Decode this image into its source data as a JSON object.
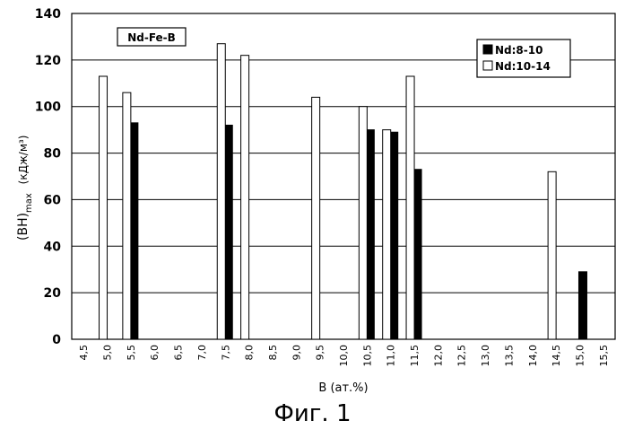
{
  "chart_data": {
    "type": "bar",
    "title": "Nd-Fe-B",
    "xlabel": "B (ат.%)",
    "ylabel_main": "(BH)",
    "ylabel_sub": "max",
    "ylabel_unit": "(кДж/м³)",
    "ylim": [
      0,
      140
    ],
    "yticks": [
      0,
      20,
      40,
      60,
      80,
      100,
      120,
      140
    ],
    "grid": true,
    "legend_position": "top-right",
    "categories": [
      "4,5",
      "5,0",
      "5,5",
      "6,0",
      "6,5",
      "7,0",
      "7,5",
      "8,0",
      "8,5",
      "9,0",
      "9,5",
      "10,0",
      "10,5",
      "11,0",
      "11,5",
      "12,0",
      "12,5",
      "13,0",
      "13,5",
      "14,0",
      "14,5",
      "15,0",
      "15,5"
    ],
    "series": [
      {
        "name": "Nd:8-10",
        "color": "#000000",
        "values": [
          null,
          null,
          93,
          null,
          null,
          null,
          92,
          null,
          null,
          null,
          null,
          null,
          90,
          89,
          73,
          null,
          null,
          null,
          null,
          null,
          null,
          29,
          null
        ]
      },
      {
        "name": "Nd:10-14",
        "color": "#ffffff",
        "values": [
          null,
          113,
          106,
          null,
          null,
          null,
          127,
          122,
          null,
          null,
          104,
          null,
          100,
          90,
          113,
          null,
          null,
          null,
          null,
          null,
          72,
          null,
          null
        ]
      }
    ]
  },
  "caption": "Фиг. 1"
}
